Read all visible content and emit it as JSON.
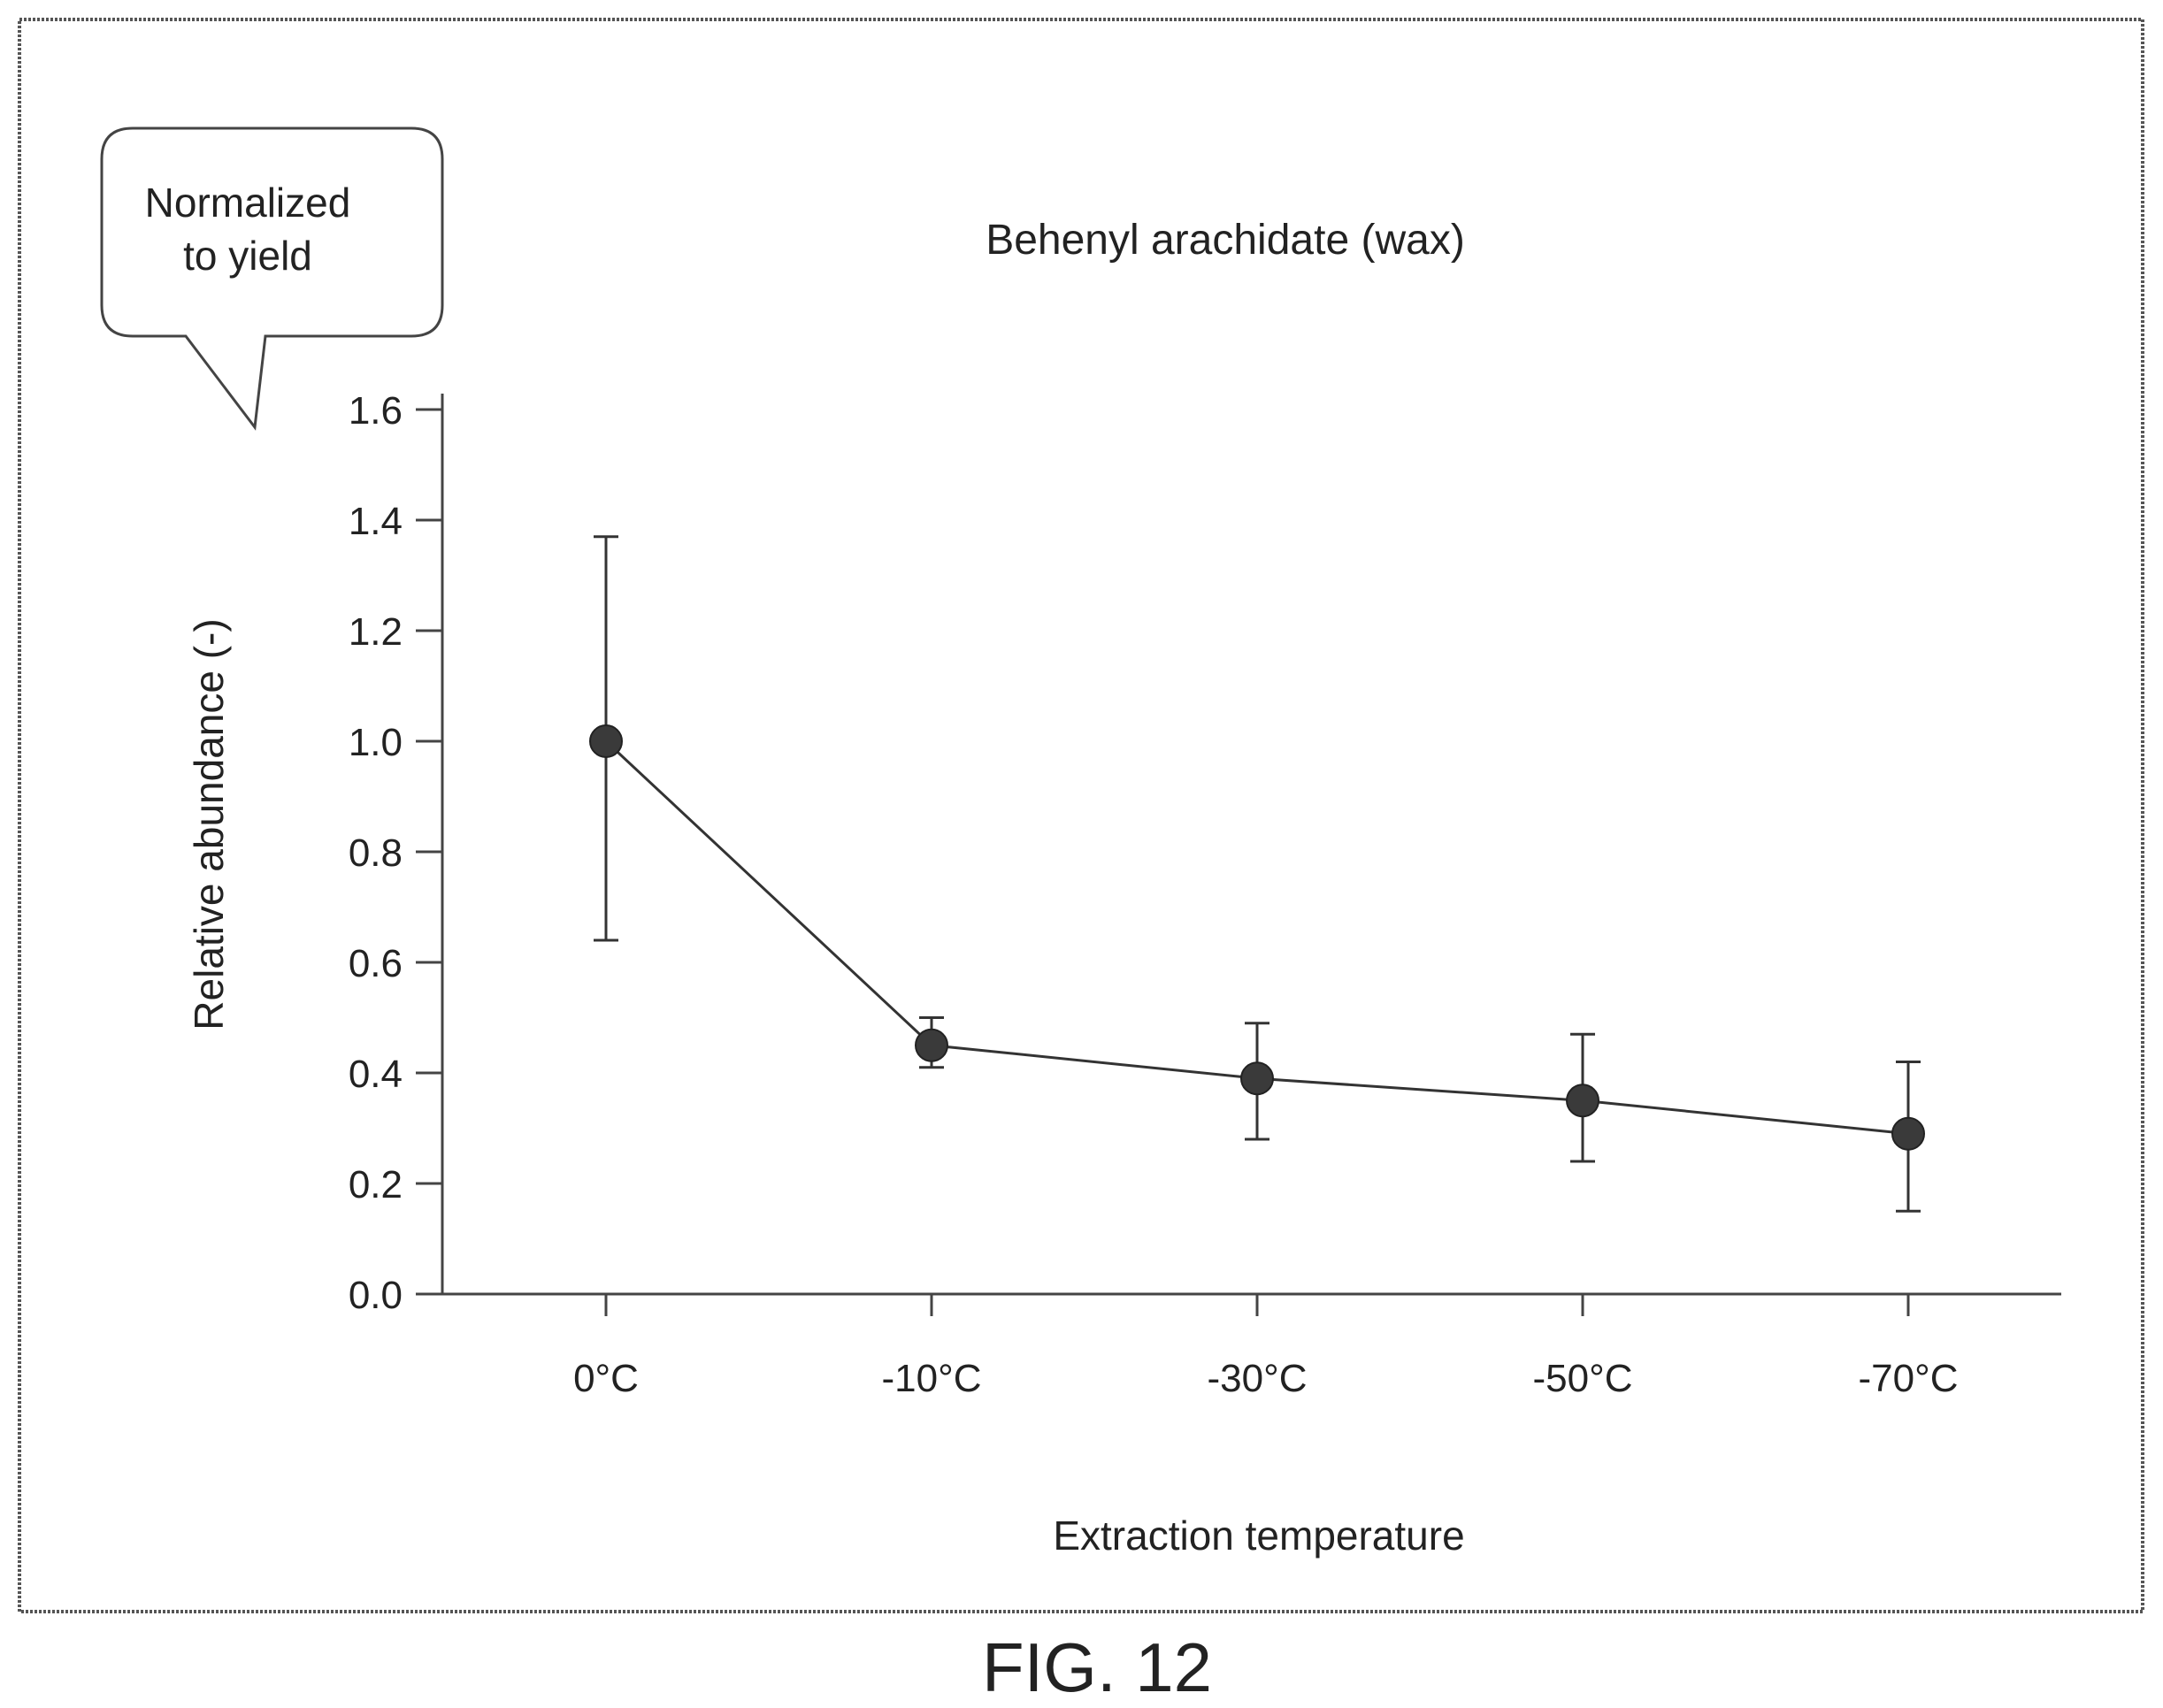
{
  "chart_data": {
    "type": "line",
    "title": "Behenyl arachidate (wax)",
    "xlabel": "Extraction temperature",
    "ylabel": "Relative abundance (-)",
    "categories": [
      "0°C",
      "-10°C",
      "-30°C",
      "-50°C",
      "-70°C"
    ],
    "series": [
      {
        "values": [
          1.0,
          0.45,
          0.39,
          0.35,
          0.29
        ],
        "error_low": [
          0.64,
          0.41,
          0.28,
          0.24,
          0.15
        ],
        "error_high": [
          1.37,
          0.5,
          0.49,
          0.47,
          0.42
        ]
      }
    ],
    "ylim": [
      0,
      1.6
    ],
    "yticks": [
      0.0,
      0.2,
      0.4,
      0.6,
      0.8,
      1.0,
      1.2,
      1.4,
      1.6
    ],
    "ytick_labels": [
      "0.0",
      "0.2",
      "0.4",
      "0.6",
      "0.8",
      "1.0",
      "1.2",
      "1.4",
      "1.6"
    ],
    "grid": false,
    "legend": "none",
    "callout": {
      "line1": "Normalized",
      "line2": "to yield"
    },
    "colors": {
      "marker": "#3a3a3a",
      "line": "#333333",
      "frame": "#555555"
    }
  },
  "figure_caption": "FIG. 12"
}
